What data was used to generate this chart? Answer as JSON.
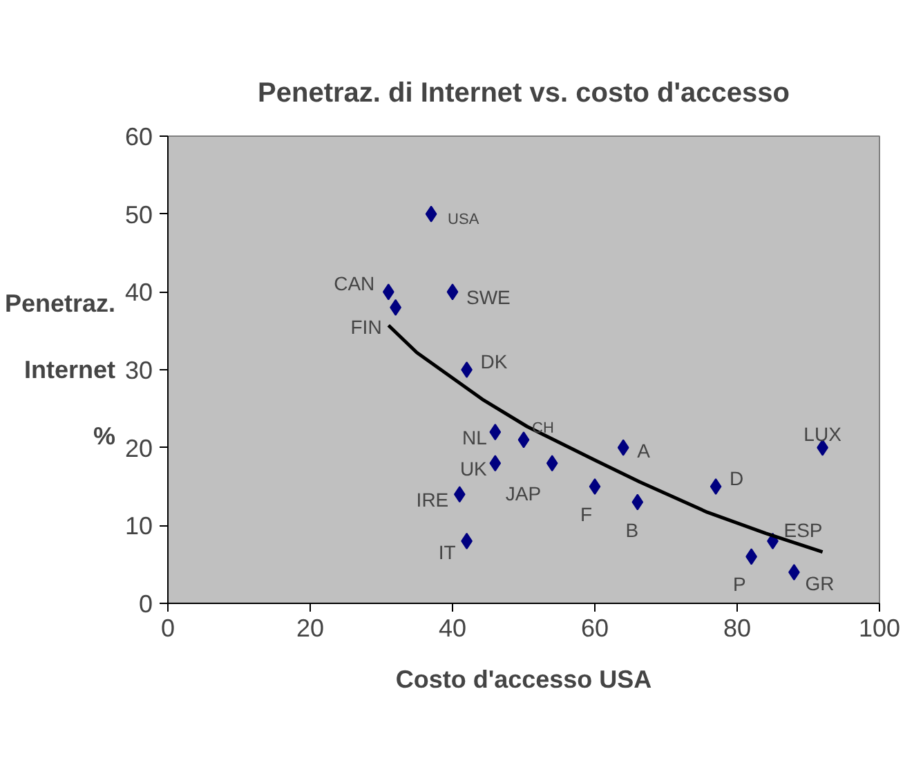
{
  "chart_data": {
    "type": "scatter",
    "title": "Penetraz. di Internet vs. costo d'accesso",
    "xlabel": "Costo d'accesso USA",
    "ylabel": "Penetraz. Internet %",
    "xlim": [
      0,
      100
    ],
    "xticks": [
      0,
      20,
      40,
      60,
      80,
      100
    ],
    "ylim": [
      0,
      60
    ],
    "yticks": [
      0,
      10,
      20,
      30,
      40,
      50,
      60
    ],
    "grid": false,
    "marker": "diamond",
    "series": [
      {
        "color": "#000080",
        "x": [
          37,
          31,
          32,
          40,
          42,
          46,
          50,
          46,
          54,
          41,
          42,
          60,
          64,
          66,
          77,
          92,
          85,
          82,
          88
        ],
        "values": [
          50,
          40,
          38,
          40,
          30,
          22,
          21,
          18,
          18,
          14,
          8,
          15,
          20,
          13,
          15,
          20,
          8,
          6,
          4
        ],
        "value_labels": [
          "USA",
          "CAN",
          "FIN",
          "SWE",
          "DK",
          "NL",
          "CH",
          "UK",
          "JAP",
          "IRE",
          "IT",
          "F",
          "A",
          "B",
          "D",
          "LUX",
          "ESP",
          "P",
          "GR"
        ]
      },
      {
        "type": "line",
        "marker": "none",
        "color": "#000000",
        "x": [
          31,
          35,
          44.2,
          50.5,
          60,
          66.3,
          75.8,
          84,
          92
        ],
        "values": [
          35.7,
          32.2,
          26.2,
          22.7,
          18.4,
          15.6,
          11.7,
          9,
          6.6
        ]
      }
    ]
  }
}
